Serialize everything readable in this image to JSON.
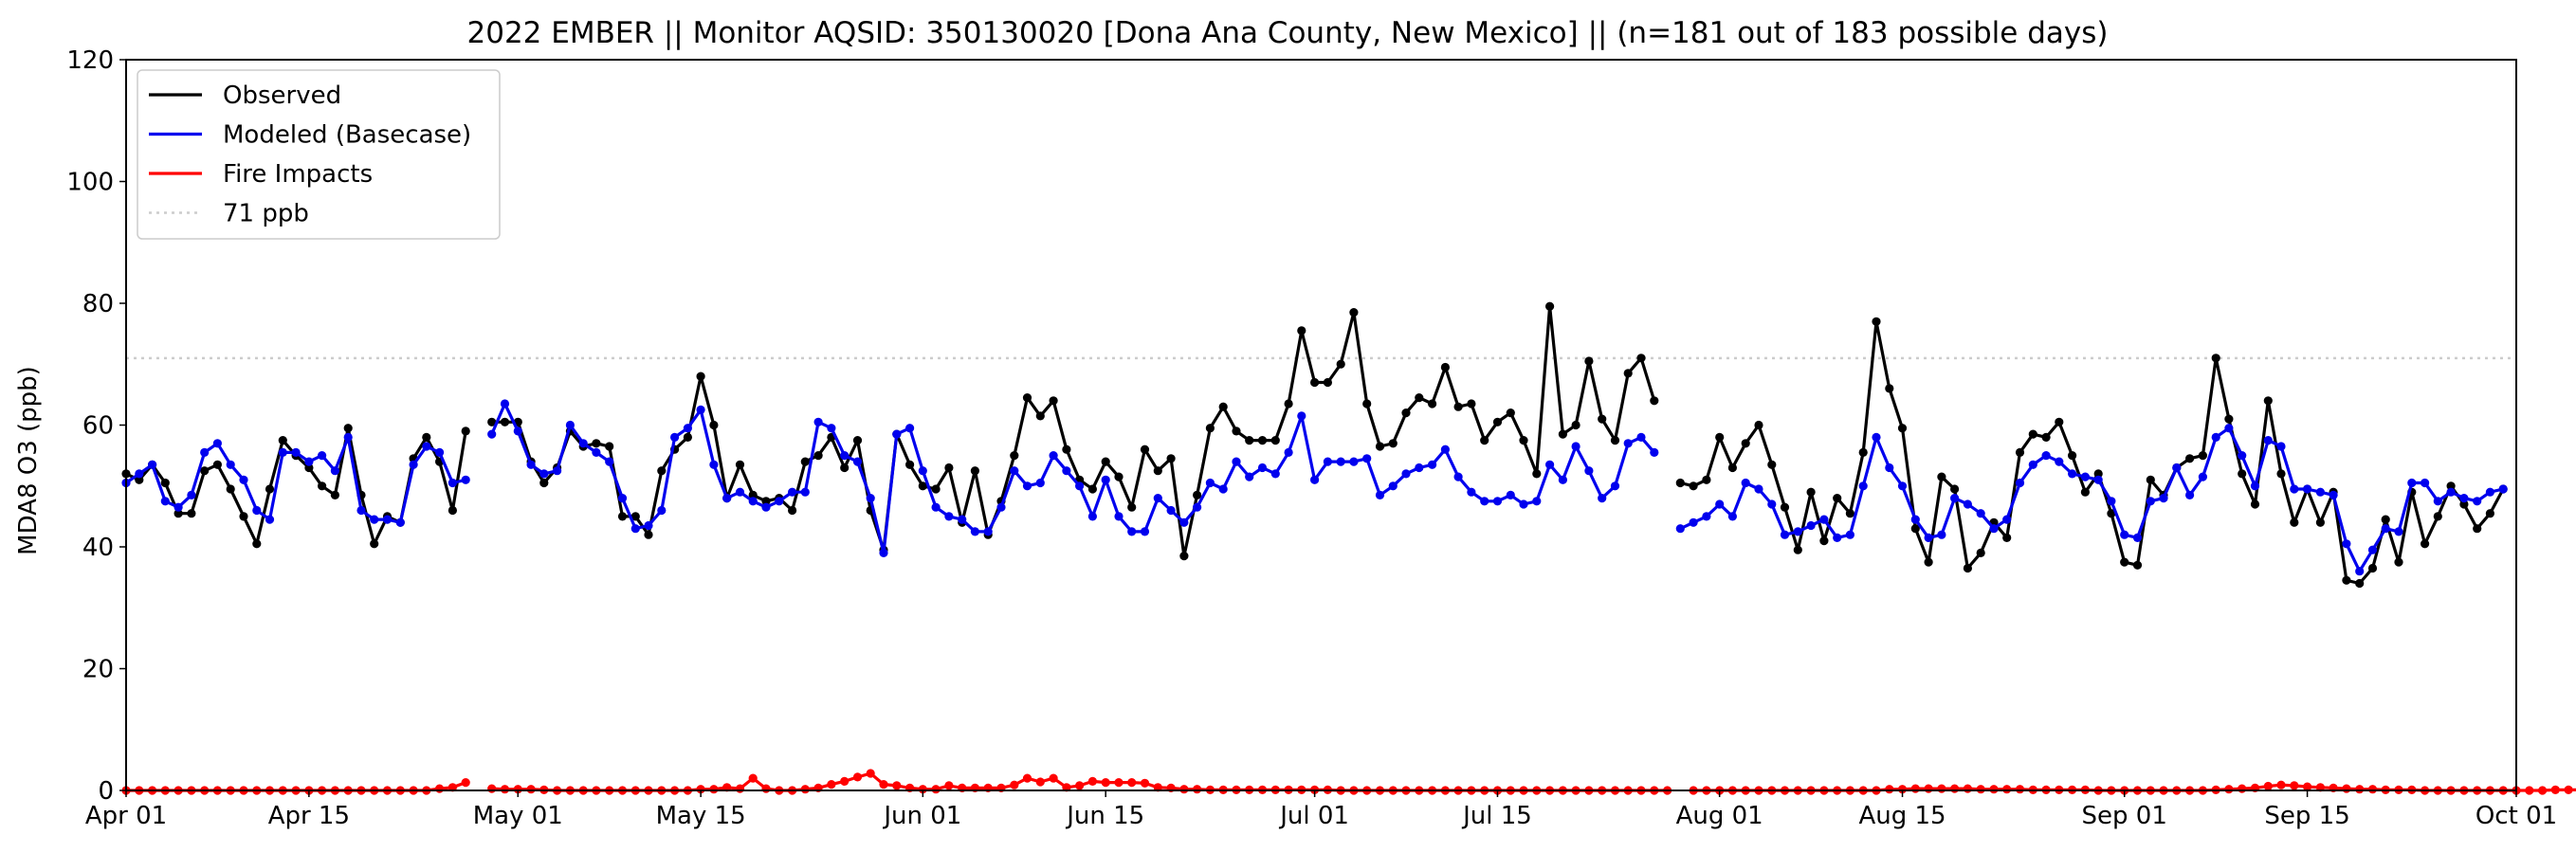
{
  "chart_data": {
    "type": "line",
    "title": "2022 EMBER || Monitor AQSID: 350130020 [Dona Ana County, New Mexico] || (n=181 out of 183 possible days)",
    "xlabel": "",
    "ylabel": "MDA8 O3 (ppb)",
    "x_start": "Apr 01",
    "x_ticks": [
      {
        "day": 0,
        "label": "Apr 01"
      },
      {
        "day": 14,
        "label": "Apr 15"
      },
      {
        "day": 30,
        "label": "May 01"
      },
      {
        "day": 44,
        "label": "May 15"
      },
      {
        "day": 61,
        "label": "Jun 01"
      },
      {
        "day": 75,
        "label": "Jun 15"
      },
      {
        "day": 91,
        "label": "Jul 01"
      },
      {
        "day": 105,
        "label": "Jul 15"
      },
      {
        "day": 122,
        "label": "Aug 01"
      },
      {
        "day": 136,
        "label": "Aug 15"
      },
      {
        "day": 153,
        "label": "Sep 01"
      },
      {
        "day": 167,
        "label": "Sep 15"
      },
      {
        "day": 183,
        "label": "Oct 01"
      }
    ],
    "xlim": [
      0,
      183
    ],
    "ylim": [
      0,
      120
    ],
    "y_ticks": [
      0,
      20,
      40,
      60,
      80,
      100,
      120
    ],
    "grid": false,
    "legend_position": "top-left",
    "threshold": {
      "name": "71 ppb",
      "value": 71,
      "color": "#cccccc"
    },
    "series": [
      {
        "name": "Observed",
        "color": "#000000",
        "values": [
          52,
          51,
          53.5,
          50.5,
          45.5,
          45.5,
          52.5,
          53.5,
          49.5,
          45,
          40.5,
          49.5,
          57.5,
          55,
          53,
          50,
          48.5,
          59.5,
          48.5,
          40.5,
          45,
          44,
          54.5,
          58,
          54,
          46,
          59,
          null,
          60.5,
          60.5,
          60.5,
          54,
          50.5,
          53,
          59,
          56.5,
          57,
          56.5,
          45,
          45,
          42,
          52.5,
          56,
          58,
          68,
          60,
          48,
          53.5,
          48.5,
          47.5,
          48,
          46,
          54,
          55,
          58,
          53,
          57.5,
          46,
          39.5,
          58.5,
          53.5,
          50,
          49.5,
          53,
          44,
          52.5,
          42,
          47.5,
          55,
          64.5,
          61.5,
          64,
          56,
          51,
          49.5,
          54,
          51.5,
          46.5,
          56,
          52.5,
          54.5,
          38.5,
          48.5,
          59.5,
          63,
          59,
          57.5,
          57.5,
          57.5,
          63.5,
          75.5,
          67,
          67,
          70,
          78.5,
          63.5,
          56.5,
          57,
          62,
          64.5,
          63.5,
          69.5,
          63,
          63.5,
          57.5,
          60.5,
          62,
          57.5,
          52,
          79.5,
          58.5,
          60,
          70.5,
          61,
          57.5,
          68.5,
          71,
          64,
          null,
          50.5,
          50,
          51,
          58,
          53,
          57,
          60,
          53.5,
          46.5,
          39.5,
          49,
          41,
          48,
          45.5,
          55.5,
          77,
          66,
          59.5,
          43,
          37.5,
          51.5,
          49.5,
          36.5,
          39,
          44,
          41.5,
          55.5,
          58.5,
          58,
          60.5,
          55,
          49,
          52,
          45.5,
          37.5,
          37,
          51,
          48.5,
          53,
          54.5,
          55,
          71,
          61,
          52,
          47,
          64,
          52,
          44,
          49.5,
          44,
          49,
          34.5,
          34,
          36.5,
          44.5,
          37.5,
          49,
          40.5,
          45,
          50,
          47,
          43,
          45.5,
          49.5
        ]
      },
      {
        "name": "Modeled (Basecase)",
        "color": "#0000ee",
        "values": [
          50.5,
          52,
          53.5,
          47.5,
          46.5,
          48.5,
          55.5,
          57,
          53.5,
          51,
          46,
          44.5,
          55.5,
          55.5,
          54,
          55,
          52.5,
          58,
          46,
          44.5,
          44.5,
          44,
          53.5,
          56.5,
          55.5,
          50.5,
          51,
          null,
          58.5,
          63.5,
          59,
          53.5,
          52,
          52.5,
          60,
          57,
          55.5,
          54,
          48,
          43,
          43.5,
          46,
          58,
          59.5,
          62.5,
          53.5,
          48,
          49,
          47.5,
          46.5,
          47.5,
          49,
          49,
          60.5,
          59.5,
          55,
          54,
          48,
          39,
          58.5,
          59.5,
          52.5,
          46.5,
          45,
          44.5,
          42.5,
          42.5,
          46.5,
          52.5,
          50,
          50.5,
          55,
          52.5,
          50,
          45,
          51,
          45,
          42.5,
          42.5,
          48,
          46,
          44,
          46.5,
          50.5,
          49.5,
          54,
          51.5,
          53,
          52,
          55.5,
          61.5,
          51,
          54,
          54,
          54,
          54.5,
          48.5,
          50,
          52,
          53,
          53.5,
          56,
          51.5,
          49,
          47.5,
          47.5,
          48.5,
          47,
          47.5,
          53.5,
          51,
          56.5,
          52.5,
          48,
          50,
          57,
          58,
          55.5,
          null,
          43,
          44,
          45,
          47,
          45,
          50.5,
          49.5,
          47,
          42,
          42.5,
          43.5,
          44.5,
          41.5,
          42,
          50,
          58,
          53,
          50,
          44.5,
          41.5,
          42,
          48,
          47,
          45.5,
          43,
          44.5,
          50.5,
          53.5,
          55,
          54,
          52,
          51.5,
          51,
          47.5,
          42,
          41.5,
          47.5,
          48,
          53,
          48.5,
          51.5,
          58,
          59.5,
          55,
          50,
          57.5,
          56.5,
          49.5,
          49.5,
          49,
          48.5,
          40.5,
          36,
          39.5,
          43,
          42.5,
          50.5,
          50.5,
          47.5,
          49,
          48,
          47.5,
          49,
          49.5
        ]
      },
      {
        "name": "Fire Impacts",
        "color": "#ff0000",
        "values": [
          0,
          0,
          0,
          0,
          0,
          0,
          0,
          0,
          0,
          0,
          0,
          0,
          0,
          0,
          0,
          0,
          0,
          0,
          0,
          0,
          0,
          0,
          0,
          0,
          0.3,
          0.5,
          1.3,
          null,
          0.3,
          0.2,
          0.2,
          0.2,
          0.1,
          0,
          0,
          0,
          0,
          0,
          0,
          0,
          0,
          0,
          0,
          0,
          0.2,
          0.2,
          0.5,
          0.3,
          2,
          0.3,
          0,
          0,
          0.2,
          0.4,
          1,
          1.5,
          2.2,
          2.8,
          1,
          0.8,
          0.4,
          0.2,
          0.2,
          0.8,
          0.4,
          0.4,
          0.4,
          0.4,
          0.9,
          2,
          1.4,
          2,
          0.5,
          0.8,
          1.5,
          1.3,
          1.3,
          1.3,
          1.2,
          0.5,
          0.4,
          0.2,
          0.2,
          0.1,
          0.1,
          0.1,
          0.1,
          0.1,
          0.1,
          0.1,
          0.1,
          0.1,
          0.1,
          0,
          0,
          0,
          0,
          0,
          0,
          0,
          0,
          0,
          0,
          0,
          0,
          0,
          0,
          0,
          0,
          0,
          0,
          0,
          0,
          0,
          0,
          0,
          0,
          0,
          0,
          null,
          0,
          0,
          0,
          0,
          0,
          0,
          0,
          0,
          0,
          0,
          0,
          0,
          0,
          0,
          0,
          0.2,
          0.2,
          0.3,
          0.3,
          0.3,
          0.3,
          0.3,
          0.2,
          0.2,
          0.2,
          0.2,
          0.1,
          0.1,
          0.1,
          0.1,
          0.1,
          0,
          0,
          0,
          0,
          0,
          0,
          0,
          0,
          0,
          0.1,
          0.2,
          0.3,
          0.4,
          0.7,
          0.9,
          0.8,
          0.6,
          0.5,
          0.4,
          0.3,
          0.2,
          0.2,
          0.1,
          0.1,
          0.1,
          0,
          0,
          0,
          0,
          0,
          0,
          0,
          0,
          0,
          0,
          0.1,
          0.1,
          0.1,
          0
        ]
      }
    ]
  }
}
